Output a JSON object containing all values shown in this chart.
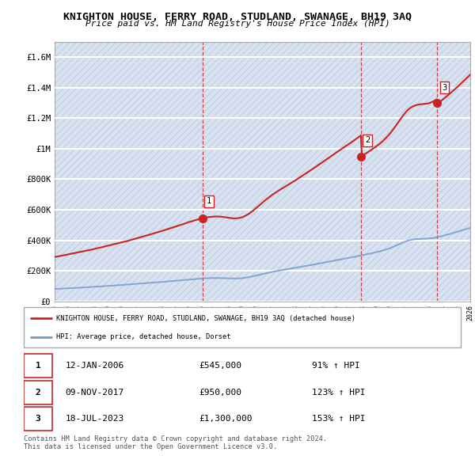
{
  "title": "KNIGHTON HOUSE, FERRY ROAD, STUDLAND, SWANAGE, BH19 3AQ",
  "subtitle": "Price paid vs. HM Land Registry's House Price Index (HPI)",
  "ylim": [
    0,
    1700000
  ],
  "yticks": [
    0,
    200000,
    400000,
    600000,
    800000,
    1000000,
    1200000,
    1400000,
    1600000
  ],
  "ytick_labels": [
    "£0",
    "£200K",
    "£400K",
    "£600K",
    "£800K",
    "£1M",
    "£1.2M",
    "£1.4M",
    "£1.6M"
  ],
  "sale_dates_num": [
    2006.04,
    2017.85,
    2023.54
  ],
  "sale_prices": [
    545000,
    950000,
    1300000
  ],
  "sale_labels": [
    "1",
    "2",
    "3"
  ],
  "hpi_line_color": "#7799cc",
  "price_line_color": "#cc2222",
  "sale_marker_color": "#cc2222",
  "dashed_line_color": "#cc3333",
  "legend_house_label": "KNIGHTON HOUSE, FERRY ROAD, STUDLAND, SWANAGE, BH19 3AQ (detached house)",
  "legend_hpi_label": "HPI: Average price, detached house, Dorset",
  "table_rows": [
    [
      "1",
      "12-JAN-2006",
      "£545,000",
      "91% ↑ HPI"
    ],
    [
      "2",
      "09-NOV-2017",
      "£950,000",
      "123% ↑ HPI"
    ],
    [
      "3",
      "18-JUL-2023",
      "£1,300,000",
      "153% ↑ HPI"
    ]
  ],
  "footnote": "Contains HM Land Registry data © Crown copyright and database right 2024.\nThis data is licensed under the Open Government Licence v3.0.",
  "bg_color": "#ffffff",
  "plot_bg_color": "#e8eef8",
  "grid_color": "#ffffff",
  "hatch_color": "#d0d8ee"
}
